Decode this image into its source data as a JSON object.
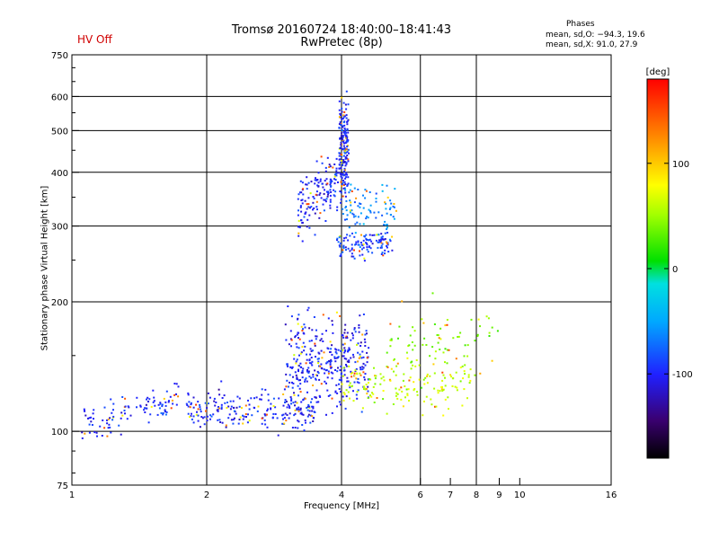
{
  "header": {
    "title": "Tromsø 20160724 18:40:00–18:41:43",
    "subtitle": "RwPretec (8p)",
    "status": "HV Off",
    "phases_title": "Phases",
    "stat_o": "mean, sd,O: −94.3, 19.6",
    "stat_x": "mean, sd,X:  91.0, 27.9"
  },
  "colors": {
    "status": "#d00000",
    "grid": "#000000",
    "points_main": "#1030e0"
  },
  "chart_data": {
    "type": "scatter",
    "xlabel": "Frequency [MHz]",
    "ylabel": "Stationary phase Virtual Height [km]",
    "x_scale": "log",
    "y_scale": "log",
    "xlim": [
      1,
      16
    ],
    "ylim": [
      75,
      750
    ],
    "x_ticks": [
      1,
      2,
      4,
      6,
      7,
      8,
      9,
      10,
      16
    ],
    "x_tick_labels": [
      "1",
      "2",
      "4",
      "6",
      "7",
      "8",
      "9",
      "10",
      "16"
    ],
    "y_ticks": [
      75,
      100,
      200,
      300,
      400,
      500,
      600,
      750
    ],
    "y_tick_labels": [
      "75",
      "100",
      "200",
      "300",
      "400",
      "500",
      "600",
      "750"
    ],
    "grid": true,
    "colorbar": {
      "label": "[deg]",
      "range": [
        -180,
        180
      ],
      "ticks": [
        100,
        0,
        -100
      ],
      "tick_labels": [
        "100",
        "0",
        "-100"
      ]
    },
    "clusters": [
      {
        "name": "o-trace low",
        "x_range": [
          1.05,
          1.75
        ],
        "y_center": 103,
        "y_spread": 0.06,
        "count": 110,
        "phase": -100
      },
      {
        "name": "o-trace base",
        "x_range": [
          1.8,
          3.5
        ],
        "y_center": 112,
        "y_spread": 0.08,
        "count": 220,
        "phase": -100
      },
      {
        "name": "spread F body",
        "x_range": [
          3.0,
          4.6
        ],
        "y_center": 145,
        "y_spread": 0.18,
        "count": 380,
        "phase": -100
      },
      {
        "name": "spread F mixed",
        "x_range": [
          4.0,
          7.8
        ],
        "y_center": 128,
        "y_spread": 0.12,
        "count": 160,
        "phase": 60
      },
      {
        "name": "F2 cusp",
        "x_range": [
          3.2,
          4.1
        ],
        "y_center": 360,
        "y_spread": 0.12,
        "count": 180,
        "phase": -100
      },
      {
        "name": "F2 vertical",
        "x_range": [
          3.95,
          4.15
        ],
        "y_center": 470,
        "y_spread": 0.18,
        "count": 160,
        "phase": -100
      },
      {
        "name": "F2 band 270",
        "x_range": [
          3.9,
          5.2
        ],
        "y_center": 272,
        "y_spread": 0.05,
        "count": 120,
        "phase": -90
      },
      {
        "name": "F2 upper band",
        "x_range": [
          4.0,
          5.3
        ],
        "y_center": 330,
        "y_spread": 0.1,
        "count": 90,
        "phase": -60
      },
      {
        "name": "x-trace high",
        "x_range": [
          5.0,
          9.0
        ],
        "y_center": 160,
        "y_spread": 0.15,
        "count": 70,
        "phase": 40
      }
    ]
  }
}
